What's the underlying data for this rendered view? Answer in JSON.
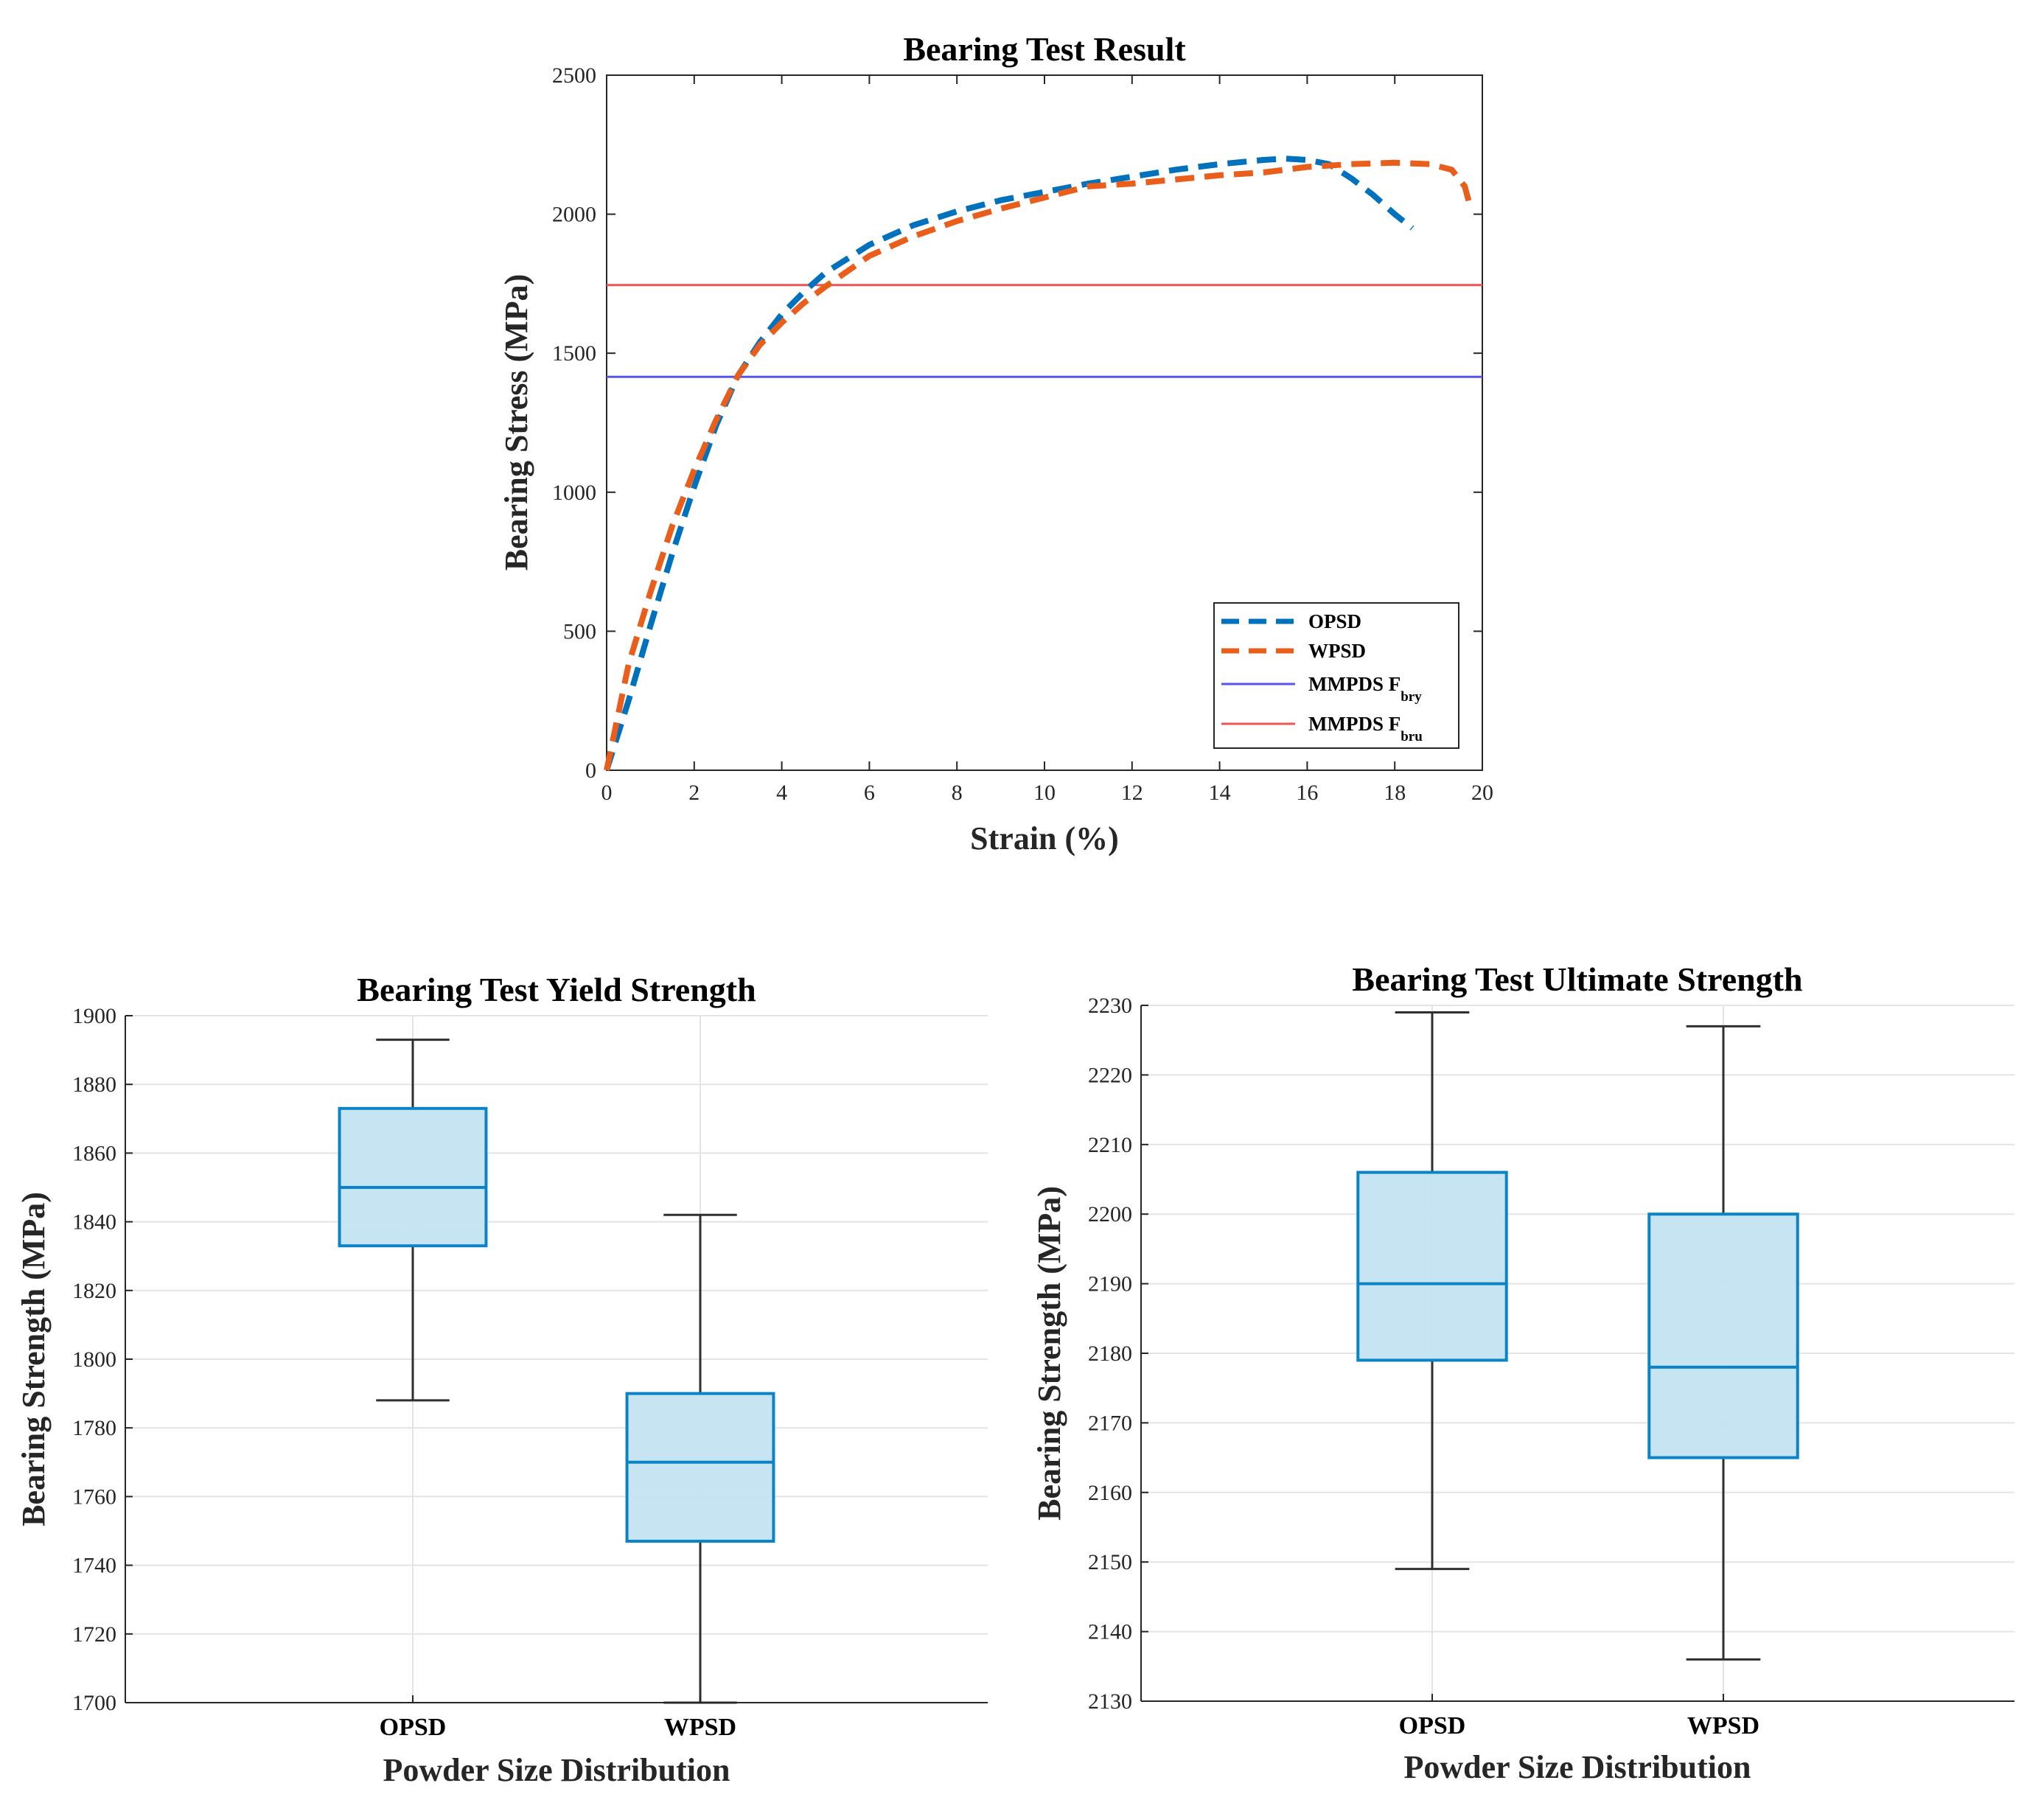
{
  "colors": {
    "opsd": "#0072BD",
    "wpsd": "#EA5E1C",
    "fbry": "#5555EE",
    "fbru": "#EE5555",
    "box_fill": "#C3E3F0",
    "box_edge": "#0A84C6",
    "whisker": "#2f2f2f"
  },
  "chart_data": [
    {
      "type": "line",
      "title": "Bearing Test Result",
      "xlabel": "Strain (%)",
      "ylabel": "Bearing Stress (MPa)",
      "xlim": [
        0,
        20
      ],
      "ylim": [
        0,
        2500
      ],
      "xticks": [
        0,
        2,
        4,
        6,
        8,
        10,
        12,
        14,
        16,
        18,
        20
      ],
      "yticks": [
        0,
        500,
        1000,
        1500,
        2000,
        2500
      ],
      "grid": false,
      "legend_position": "bottom-right",
      "series": [
        {
          "name": "OPSD",
          "style": "dashed",
          "x": [
            0,
            0.5,
            1,
            1.5,
            2,
            2.5,
            3,
            3.5,
            4,
            4.5,
            5,
            6,
            7,
            8,
            9,
            10,
            11,
            12,
            13,
            14,
            15,
            15.5,
            16,
            16.5,
            17,
            17.5,
            18,
            18.4
          ],
          "y": [
            0,
            250,
            520,
            780,
            1020,
            1240,
            1420,
            1540,
            1640,
            1720,
            1790,
            1890,
            1960,
            2010,
            2050,
            2080,
            2110,
            2135,
            2160,
            2180,
            2195,
            2200,
            2195,
            2180,
            2130,
            2070,
            2000,
            1950
          ]
        },
        {
          "name": "WPSD",
          "style": "dashed",
          "x": [
            0,
            0.5,
            1,
            1.5,
            2,
            2.5,
            3,
            3.5,
            4,
            4.5,
            5,
            6,
            7,
            8,
            9,
            10,
            11,
            12,
            13,
            14,
            15,
            16,
            17,
            18,
            18.8,
            19.3,
            19.6,
            19.7
          ],
          "y": [
            0,
            380,
            640,
            880,
            1080,
            1260,
            1420,
            1530,
            1610,
            1680,
            1740,
            1850,
            1920,
            1975,
            2020,
            2060,
            2100,
            2110,
            2125,
            2140,
            2150,
            2170,
            2180,
            2185,
            2180,
            2160,
            2100,
            2040
          ]
        },
        {
          "name": "MMPDS F",
          "sub": "bry",
          "style": "solid",
          "x": [
            0,
            20
          ],
          "y": [
            1415,
            1415
          ]
        },
        {
          "name": "MMPDS F",
          "sub": "bru",
          "style": "solid",
          "x": [
            0,
            20
          ],
          "y": [
            1745,
            1745
          ]
        }
      ]
    },
    {
      "type": "box",
      "title": "Bearing Test Yield Strength",
      "xlabel": "Powder Size Distribution",
      "ylabel": "Bearing Strength (MPa)",
      "ylim": [
        1700,
        1900
      ],
      "yticks": [
        1700,
        1720,
        1740,
        1760,
        1780,
        1800,
        1820,
        1840,
        1860,
        1880,
        1900
      ],
      "grid": true,
      "categories": [
        "OPSD",
        "WPSD"
      ],
      "boxes": [
        {
          "min": 1788,
          "q1": 1833,
          "median": 1850,
          "q3": 1873,
          "max": 1893
        },
        {
          "min": 1700,
          "q1": 1747,
          "median": 1770,
          "q3": 1790,
          "max": 1842
        }
      ]
    },
    {
      "type": "box",
      "title": "Bearing Test Ultimate Strength",
      "xlabel": "Powder Size Distribution",
      "ylabel": "Bearing Strength (MPa)",
      "ylim": [
        2130,
        2230
      ],
      "yticks": [
        2130,
        2140,
        2150,
        2160,
        2170,
        2180,
        2190,
        2200,
        2210,
        2220,
        2230
      ],
      "grid": true,
      "categories": [
        "OPSD",
        "WPSD"
      ],
      "boxes": [
        {
          "min": 2149,
          "q1": 2179,
          "median": 2190,
          "q3": 2206,
          "max": 2229
        },
        {
          "min": 2136,
          "q1": 2165,
          "median": 2178,
          "q3": 2200,
          "max": 2227
        }
      ]
    }
  ]
}
